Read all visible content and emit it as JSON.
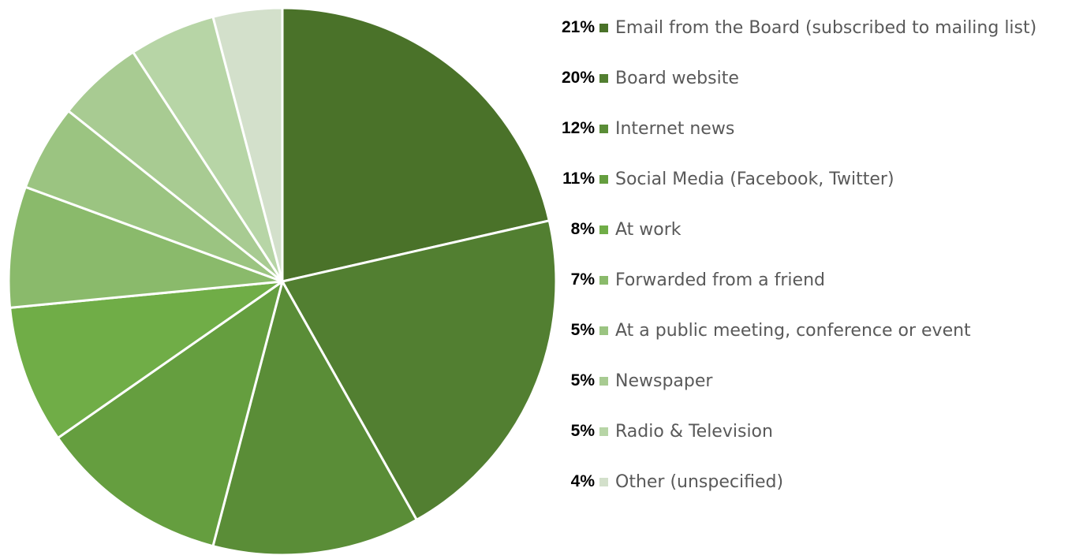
{
  "chart_data": {
    "type": "pie",
    "start_angle_deg": 0,
    "direction": "clockwise",
    "slice_border_color": "#ffffff",
    "legend_placement": "right",
    "slices": [
      {
        "label": "Email from the Board (subscribed to mailing list)",
        "value": 21,
        "display": "21%",
        "color": "#4a7229"
      },
      {
        "label": "Board website",
        "value": 20,
        "display": "20%",
        "color": "#527f31"
      },
      {
        "label": "Internet news",
        "value": 12,
        "display": "12%",
        "color": "#5a8d37"
      },
      {
        "label": "Social Media (Facebook, Twitter)",
        "value": 11,
        "display": "11%",
        "color": "#659e3f"
      },
      {
        "label": "At work",
        "value": 8,
        "display": "8%",
        "color": "#70ad47"
      },
      {
        "label": "Forwarded from a friend",
        "value": 7,
        "display": "7%",
        "color": "#8aba6b"
      },
      {
        "label": "At a public meeting, conference or event",
        "value": 5,
        "display": "5%",
        "color": "#9bc481"
      },
      {
        "label": "Newspaper",
        "value": 5,
        "display": "5%",
        "color": "#a8cb92"
      },
      {
        "label": "Radio & Television",
        "value": 5,
        "display": "5%",
        "color": "#b7d5a6"
      },
      {
        "label": "Other (unspecified)",
        "value": 4,
        "display": "4%",
        "color": "#d3e0cb"
      }
    ]
  }
}
